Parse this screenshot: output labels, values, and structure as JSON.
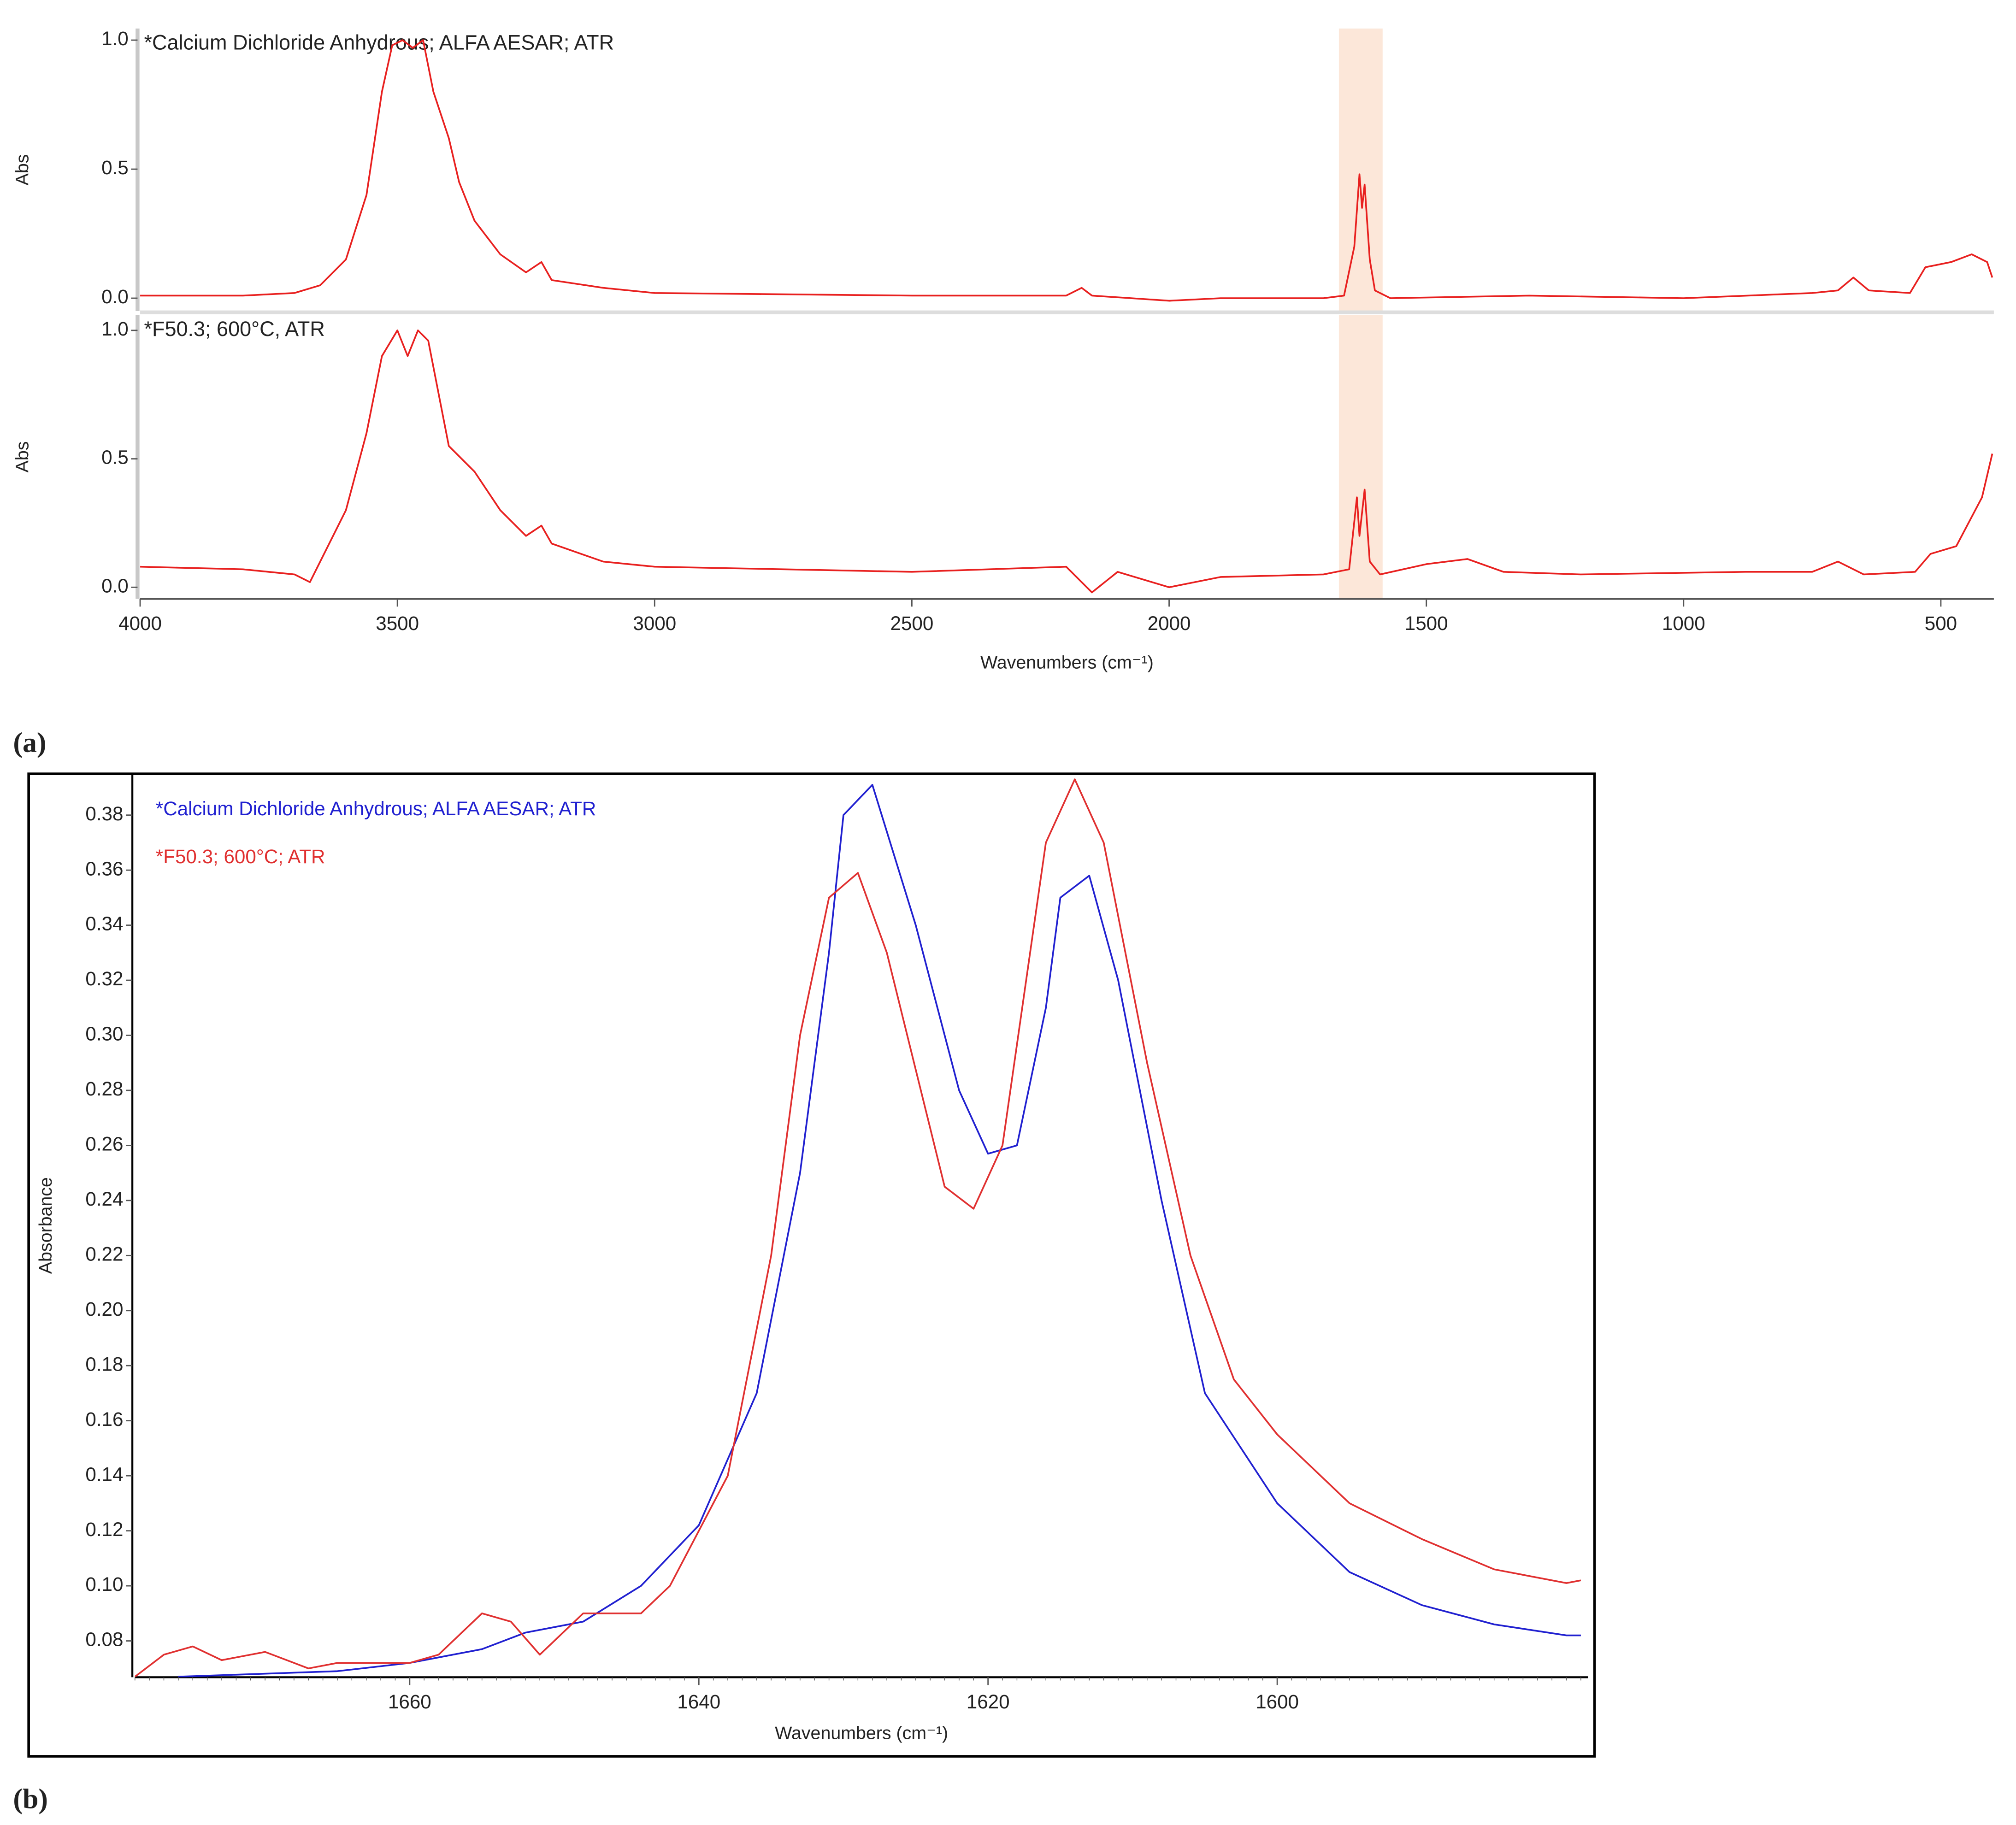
{
  "chart_data": [
    {
      "type": "line",
      "annotation": "*Calcium Dichloride Anhydrous; ALFA  AESAR; ATR",
      "ylabel": "Abs",
      "xlim": [
        4000,
        397
      ],
      "ylim": [
        -0.05,
        1.045
      ],
      "yticks": [
        {
          "value": 0,
          "label": "0.0"
        },
        {
          "value": 0.5,
          "label": "0.5"
        },
        {
          "value": 1,
          "label": "1.0"
        }
      ],
      "highlight": [
        1670,
        1585
      ],
      "series": [
        {
          "color": "#e8201f",
          "x": [
            4000,
            3800,
            3700,
            3650,
            3600,
            3560,
            3530,
            3510,
            3490,
            3470,
            3450,
            3430,
            3400,
            3380,
            3350,
            3300,
            3250,
            3220,
            3200,
            3100,
            3000,
            2500,
            2200,
            2170,
            2150,
            2000,
            1900,
            1700,
            1660,
            1640,
            1630,
            1625,
            1620,
            1610,
            1600,
            1570,
            1300,
            1000,
            750,
            700,
            670,
            640,
            560,
            530,
            480,
            440,
            410,
            400
          ],
          "values": [
            0.01,
            0.01,
            0.02,
            0.05,
            0.15,
            0.4,
            0.8,
            0.98,
            1.0,
            0.97,
            1.0,
            0.8,
            0.62,
            0.45,
            0.3,
            0.17,
            0.1,
            0.14,
            0.07,
            0.04,
            0.02,
            0.01,
            0.01,
            0.04,
            0.01,
            -0.01,
            0.0,
            0.0,
            0.01,
            0.2,
            0.48,
            0.35,
            0.44,
            0.15,
            0.03,
            0.0,
            0.01,
            0.0,
            0.02,
            0.03,
            0.08,
            0.03,
            0.02,
            0.12,
            0.14,
            0.17,
            0.14,
            0.08
          ]
        }
      ]
    },
    {
      "type": "line",
      "annotation": "*F50.3; 600°C, ATR",
      "ylabel": "Abs",
      "xlabel": "Wavenumbers (cm⁻¹)",
      "panel_label": "(a)",
      "xlim": [
        4000,
        397
      ],
      "ylim": [
        -0.045,
        1.06
      ],
      "yticks": [
        {
          "value": 0,
          "label": "0.0"
        },
        {
          "value": 0.5,
          "label": "0.5"
        },
        {
          "value": 1,
          "label": "1.0"
        }
      ],
      "xticks": [
        4000,
        3500,
        3000,
        2500,
        2000,
        1500,
        1000,
        500
      ],
      "highlight": [
        1670,
        1585
      ],
      "series": [
        {
          "color": "#e8201f",
          "x": [
            4000,
            3800,
            3700,
            3670,
            3650,
            3600,
            3560,
            3530,
            3500,
            3480,
            3460,
            3440,
            3400,
            3350,
            3300,
            3250,
            3220,
            3200,
            3100,
            3000,
            2500,
            2200,
            2150,
            2100,
            2000,
            1900,
            1700,
            1650,
            1635,
            1630,
            1620,
            1610,
            1590,
            1500,
            1420,
            1350,
            1200,
            880,
            750,
            700,
            650,
            550,
            520,
            470,
            420,
            400
          ],
          "values": [
            0.08,
            0.07,
            0.05,
            0.02,
            0.1,
            0.3,
            0.6,
            0.9,
            1.0,
            0.9,
            1.0,
            0.96,
            0.55,
            0.45,
            0.3,
            0.2,
            0.24,
            0.17,
            0.1,
            0.08,
            0.06,
            0.08,
            -0.02,
            0.06,
            0.0,
            0.04,
            0.05,
            0.07,
            0.35,
            0.2,
            0.38,
            0.1,
            0.05,
            0.09,
            0.11,
            0.06,
            0.05,
            0.06,
            0.06,
            0.1,
            0.05,
            0.06,
            0.13,
            0.16,
            0.35,
            0.52
          ]
        }
      ]
    },
    {
      "type": "line",
      "ylabel": "Absorbance",
      "xlabel": "Wavenumbers (cm⁻¹)",
      "panel_label": "(b)",
      "xlim": [
        1679,
        1578.5
      ],
      "ylim": [
        0.0668,
        0.395
      ],
      "yticks": [
        0.08,
        {
          "value": 0.1,
          "label": "0.10"
        },
        0.12,
        0.14,
        0.16,
        0.18,
        {
          "value": 0.2,
          "label": "0.20"
        },
        0.22,
        0.24,
        0.26,
        0.28,
        {
          "value": 0.3,
          "label": "0.30"
        },
        0.32,
        0.34,
        0.36,
        0.38
      ],
      "xticks": [
        1660,
        1640,
        1620,
        1600
      ],
      "series": [
        {
          "name": "*Calcium Dichloride Anhydrous; ALFA AESAR; ATR",
          "color": "#2020d0",
          "x": [
            1676,
            1665,
            1660,
            1655,
            1652,
            1648,
            1644,
            1640,
            1636,
            1633,
            1631,
            1630,
            1628,
            1625,
            1622,
            1620,
            1618,
            1616,
            1615,
            1613,
            1611,
            1608,
            1605,
            1600,
            1595,
            1590,
            1585,
            1580,
            1579
          ],
          "values": [
            0.067,
            0.069,
            0.072,
            0.077,
            0.083,
            0.087,
            0.1,
            0.122,
            0.17,
            0.25,
            0.33,
            0.38,
            0.391,
            0.34,
            0.28,
            0.257,
            0.26,
            0.31,
            0.35,
            0.358,
            0.32,
            0.24,
            0.17,
            0.13,
            0.105,
            0.093,
            0.086,
            0.082,
            0.082
          ]
        },
        {
          "name": "*F50.3; 600°C; ATR",
          "color": "#e03030",
          "x": [
            1679,
            1677,
            1675,
            1673,
            1670,
            1667,
            1665,
            1660,
            1658,
            1655,
            1653,
            1651,
            1648,
            1644,
            1642,
            1638,
            1635,
            1633,
            1631,
            1629,
            1627,
            1623,
            1621,
            1619,
            1616,
            1614,
            1612,
            1609,
            1606,
            1603,
            1600,
            1595,
            1590,
            1585,
            1580,
            1579
          ],
          "values": [
            0.067,
            0.075,
            0.078,
            0.073,
            0.076,
            0.07,
            0.072,
            0.072,
            0.075,
            0.09,
            0.087,
            0.075,
            0.09,
            0.09,
            0.1,
            0.14,
            0.22,
            0.3,
            0.35,
            0.359,
            0.33,
            0.245,
            0.237,
            0.26,
            0.37,
            0.393,
            0.37,
            0.29,
            0.22,
            0.175,
            0.155,
            0.13,
            0.117,
            0.106,
            0.101,
            0.102
          ]
        }
      ]
    }
  ]
}
